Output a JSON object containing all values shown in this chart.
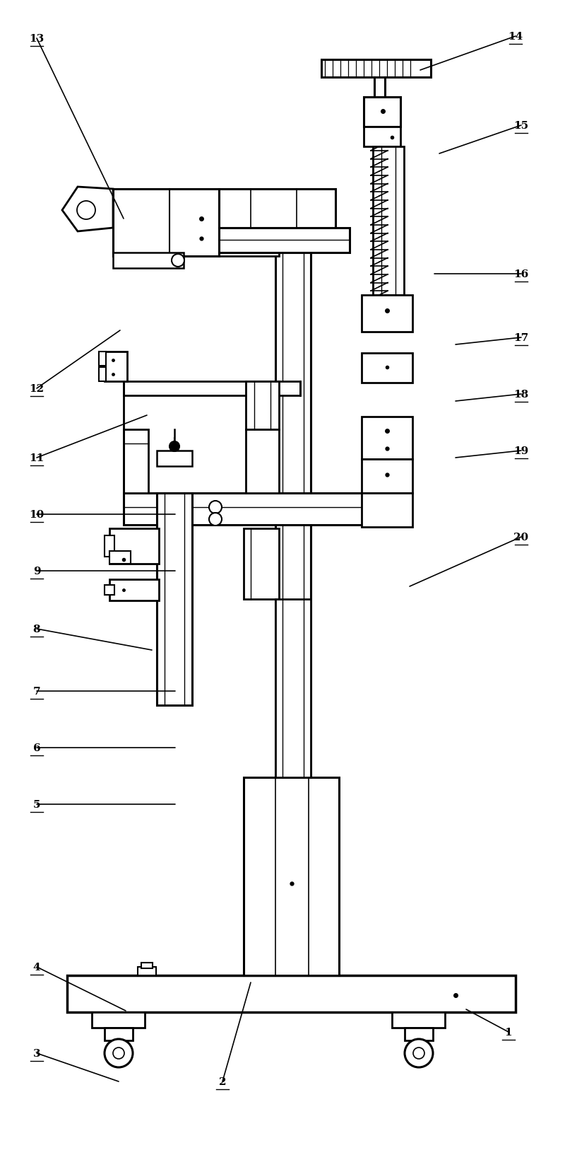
{
  "fig_width": 8.0,
  "fig_height": 16.58,
  "bg_color": "#ffffff",
  "annotations": [
    [
      "13",
      52,
      55,
      175,
      310
    ],
    [
      "14",
      730,
      52,
      595,
      100
    ],
    [
      "15",
      738,
      178,
      622,
      218
    ],
    [
      "16",
      738,
      388,
      615,
      388
    ],
    [
      "17",
      738,
      478,
      645,
      488
    ],
    [
      "18",
      738,
      558,
      645,
      568
    ],
    [
      "19",
      738,
      638,
      645,
      648
    ],
    [
      "20",
      738,
      760,
      580,
      830
    ],
    [
      "12",
      52,
      550,
      170,
      468
    ],
    [
      "11",
      52,
      648,
      208,
      588
    ],
    [
      "10",
      52,
      728,
      248,
      728
    ],
    [
      "9",
      52,
      808,
      248,
      808
    ],
    [
      "8",
      52,
      890,
      215,
      920
    ],
    [
      "7",
      52,
      978,
      248,
      978
    ],
    [
      "6",
      52,
      1058,
      248,
      1058
    ],
    [
      "5",
      52,
      1138,
      248,
      1138
    ],
    [
      "4",
      52,
      1368,
      178,
      1430
    ],
    [
      "3",
      52,
      1490,
      168,
      1530
    ],
    [
      "2",
      315,
      1530,
      355,
      1390
    ],
    [
      "1",
      720,
      1460,
      660,
      1428
    ]
  ]
}
